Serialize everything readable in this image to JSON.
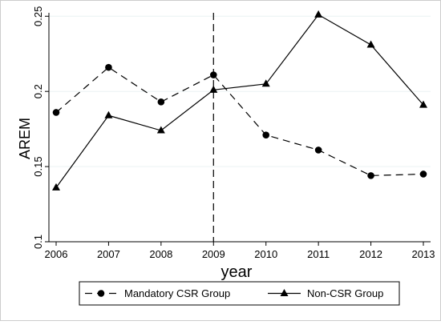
{
  "chart_data": {
    "type": "line",
    "xlabel": "year",
    "ylabel": "AREM",
    "x": [
      2006,
      2007,
      2008,
      2009,
      2010,
      2011,
      2012,
      2013
    ],
    "xticks": [
      "2006",
      "2007",
      "2008",
      "2009",
      "2010",
      "2011",
      "2012",
      "2013"
    ],
    "yticks": [
      "0.1",
      "0.15",
      "0.2",
      "0.25"
    ],
    "ylim": [
      0.1,
      0.25
    ],
    "xlim": [
      2006,
      2013
    ],
    "grid": "horizontal",
    "reference_line": {
      "x": 2009,
      "style": "dashed"
    },
    "legend_position": "bottom",
    "series": [
      {
        "name": "Mandatory CSR Group",
        "marker": "circle",
        "line": "dashed",
        "values": [
          0.186,
          0.216,
          0.193,
          0.211,
          0.171,
          0.161,
          0.144,
          0.145
        ]
      },
      {
        "name": "Non-CSR Group",
        "marker": "triangle",
        "line": "solid",
        "values": [
          0.136,
          0.184,
          0.174,
          0.201,
          0.205,
          0.251,
          0.231,
          0.191
        ]
      }
    ]
  }
}
